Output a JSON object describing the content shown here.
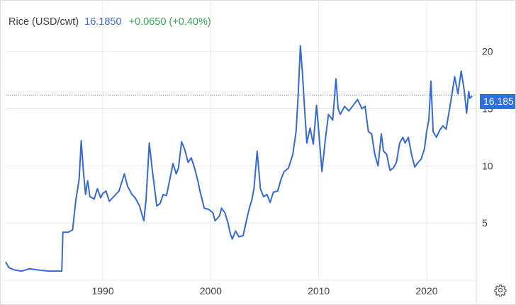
{
  "header": {
    "name": "Rice (USD/cwt)",
    "price": "16.1850",
    "change": "+0.0650 (+0.40%)"
  },
  "last_value_label": "16.185",
  "colors": {
    "line": "#3569d8",
    "tag": "#2f6fe0",
    "positive": "#34a853",
    "price": "#4169cf"
  },
  "settings_icon": "gear-icon",
  "chart_data": {
    "type": "line",
    "title": "",
    "xlabel": "",
    "ylabel": "",
    "grid": true,
    "xlim": [
      1981,
      2024.6
    ],
    "ylim": [
      0,
      24.5
    ],
    "x_ticks": [
      1990,
      2000,
      2010,
      2020
    ],
    "y_ticks": [
      5,
      10,
      15,
      20
    ],
    "last_value": 16.185,
    "series": [
      {
        "points": [
          [
            1981.0,
            1.6
          ],
          [
            1981.3,
            1.1
          ],
          [
            1981.8,
            0.9
          ],
          [
            1982.5,
            0.8
          ],
          [
            1983.2,
            1.0
          ],
          [
            1984.0,
            0.9
          ],
          [
            1985.0,
            0.8
          ],
          [
            1986.2,
            0.8
          ],
          [
            1986.3,
            4.2
          ],
          [
            1986.8,
            4.2
          ],
          [
            1987.2,
            4.4
          ],
          [
            1987.5,
            7.0
          ],
          [
            1987.8,
            8.8
          ],
          [
            1988.0,
            12.2
          ],
          [
            1988.2,
            9.5
          ],
          [
            1988.4,
            7.5
          ],
          [
            1988.6,
            8.7
          ],
          [
            1988.8,
            7.3
          ],
          [
            1989.2,
            7.1
          ],
          [
            1989.5,
            8.0
          ],
          [
            1989.8,
            7.2
          ],
          [
            1990.0,
            7.6
          ],
          [
            1990.3,
            7.8
          ],
          [
            1990.6,
            6.9
          ],
          [
            1991.0,
            7.3
          ],
          [
            1991.5,
            7.8
          ],
          [
            1992.0,
            9.3
          ],
          [
            1992.3,
            8.2
          ],
          [
            1992.7,
            7.5
          ],
          [
            1993.0,
            7.2
          ],
          [
            1993.4,
            6.5
          ],
          [
            1993.8,
            5.2
          ],
          [
            1994.0,
            7.0
          ],
          [
            1994.3,
            12.0
          ],
          [
            1994.6,
            9.5
          ],
          [
            1995.0,
            6.5
          ],
          [
            1995.3,
            6.7
          ],
          [
            1995.6,
            7.5
          ],
          [
            1995.9,
            7.4
          ],
          [
            1996.2,
            8.8
          ],
          [
            1996.5,
            10.2
          ],
          [
            1996.8,
            9.3
          ],
          [
            1997.0,
            9.8
          ],
          [
            1997.3,
            12.1
          ],
          [
            1997.6,
            11.4
          ],
          [
            1997.9,
            10.3
          ],
          [
            1998.2,
            10.7
          ],
          [
            1998.5,
            9.8
          ],
          [
            1998.8,
            8.7
          ],
          [
            1999.0,
            7.8
          ],
          [
            1999.4,
            6.3
          ],
          [
            1999.8,
            6.2
          ],
          [
            2000.2,
            5.9
          ],
          [
            2000.4,
            5.2
          ],
          [
            2000.8,
            5.6
          ],
          [
            2001.0,
            6.3
          ],
          [
            2001.3,
            5.9
          ],
          [
            2001.6,
            5.0
          ],
          [
            2001.8,
            4.1
          ],
          [
            2002.0,
            3.6
          ],
          [
            2002.3,
            4.3
          ],
          [
            2002.6,
            3.8
          ],
          [
            2003.0,
            3.9
          ],
          [
            2003.3,
            5.2
          ],
          [
            2003.6,
            6.4
          ],
          [
            2003.8,
            7.0
          ],
          [
            2004.0,
            8.0
          ],
          [
            2004.3,
            11.3
          ],
          [
            2004.6,
            8.0
          ],
          [
            2004.9,
            7.3
          ],
          [
            2005.2,
            7.5
          ],
          [
            2005.5,
            6.8
          ],
          [
            2005.8,
            7.7
          ],
          [
            2006.2,
            7.8
          ],
          [
            2006.5,
            8.8
          ],
          [
            2006.8,
            9.5
          ],
          [
            2007.2,
            9.8
          ],
          [
            2007.6,
            11.0
          ],
          [
            2007.9,
            13.0
          ],
          [
            2008.1,
            16.2
          ],
          [
            2008.3,
            20.5
          ],
          [
            2008.5,
            18.0
          ],
          [
            2008.7,
            14.8
          ],
          [
            2008.9,
            12.0
          ],
          [
            2009.2,
            13.3
          ],
          [
            2009.5,
            11.9
          ],
          [
            2009.8,
            15.3
          ],
          [
            2010.0,
            13.0
          ],
          [
            2010.3,
            9.5
          ],
          [
            2010.6,
            12.2
          ],
          [
            2010.9,
            14.5
          ],
          [
            2011.3,
            14.0
          ],
          [
            2011.6,
            17.6
          ],
          [
            2011.8,
            15.0
          ],
          [
            2012.0,
            14.5
          ],
          [
            2012.4,
            15.2
          ],
          [
            2012.8,
            14.8
          ],
          [
            2013.2,
            15.3
          ],
          [
            2013.6,
            15.8
          ],
          [
            2014.0,
            15.0
          ],
          [
            2014.3,
            15.2
          ],
          [
            2014.6,
            13.0
          ],
          [
            2014.9,
            12.8
          ],
          [
            2015.2,
            11.0
          ],
          [
            2015.5,
            10.0
          ],
          [
            2015.8,
            12.8
          ],
          [
            2016.0,
            11.3
          ],
          [
            2016.3,
            11.0
          ],
          [
            2016.6,
            9.6
          ],
          [
            2016.9,
            9.8
          ],
          [
            2017.2,
            10.3
          ],
          [
            2017.5,
            12.0
          ],
          [
            2017.8,
            12.5
          ],
          [
            2018.0,
            12.0
          ],
          [
            2018.3,
            12.5
          ],
          [
            2018.6,
            11.0
          ],
          [
            2018.9,
            9.9
          ],
          [
            2019.2,
            10.3
          ],
          [
            2019.5,
            10.6
          ],
          [
            2019.8,
            11.5
          ],
          [
            2020.0,
            13.0
          ],
          [
            2020.2,
            14.0
          ],
          [
            2020.4,
            17.4
          ],
          [
            2020.6,
            13.0
          ],
          [
            2020.9,
            12.5
          ],
          [
            2021.2,
            13.1
          ],
          [
            2021.5,
            13.5
          ],
          [
            2021.8,
            13.2
          ],
          [
            2022.0,
            14.3
          ],
          [
            2022.3,
            16.0
          ],
          [
            2022.6,
            17.8
          ],
          [
            2022.9,
            16.3
          ],
          [
            2023.2,
            18.3
          ],
          [
            2023.5,
            16.5
          ],
          [
            2023.7,
            14.6
          ],
          [
            2023.9,
            16.5
          ],
          [
            2024.0,
            15.9
          ],
          [
            2024.2,
            16.1
          ]
        ]
      }
    ]
  }
}
